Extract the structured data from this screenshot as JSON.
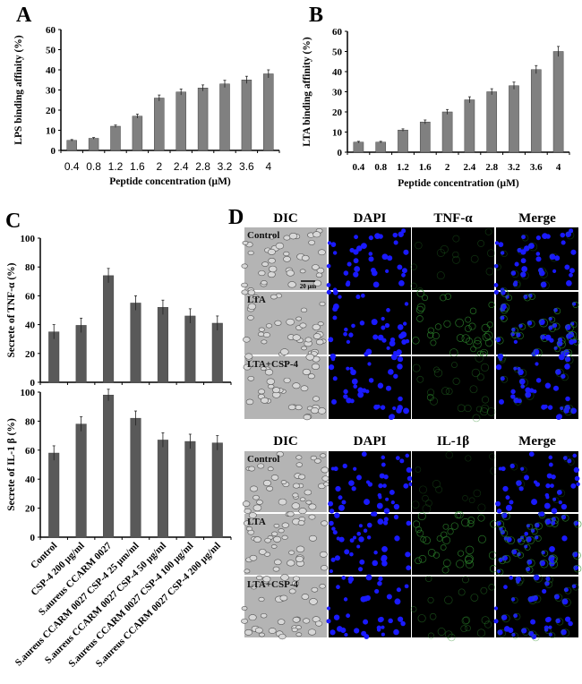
{
  "panels": {
    "a": "A",
    "b": "B",
    "c": "C",
    "d": "D"
  },
  "chart_data": [
    {
      "id": "A",
      "type": "bar",
      "categories": [
        "0.4",
        "0.8",
        "1.2",
        "1.6",
        "2",
        "2.4",
        "2.8",
        "3.2",
        "3.6",
        "4"
      ],
      "values": [
        5,
        6,
        12,
        17,
        26,
        29,
        31,
        33,
        35,
        38
      ],
      "errors": [
        0.4,
        0.4,
        0.6,
        1,
        1.5,
        1.5,
        1.5,
        1.8,
        1.8,
        2
      ],
      "xlabel": "Peptide concentration (μM)",
      "ylabel": "LPS binding affinity (%)",
      "ylim": [
        0,
        60
      ],
      "yticks": [
        0,
        10,
        20,
        30,
        40,
        50,
        60
      ],
      "color": "#808080"
    },
    {
      "id": "B",
      "type": "bar",
      "categories": [
        "0.4",
        "0.8",
        "1.2",
        "1.6",
        "2",
        "2.4",
        "2.8",
        "3.2",
        "3.6",
        "4"
      ],
      "values": [
        5,
        5,
        11,
        15,
        20,
        26,
        30,
        33,
        41,
        50
      ],
      "errors": [
        0.4,
        0.4,
        0.6,
        1,
        1.2,
        1.5,
        1.5,
        1.8,
        2,
        2.5
      ],
      "xlabel": "Peptide concentration (μM)",
      "ylabel": "LTA binding affinity (%)",
      "ylim": [
        0,
        60
      ],
      "yticks": [
        0,
        10,
        20,
        30,
        40,
        50,
        60
      ],
      "color": "#808080"
    },
    {
      "id": "C-top",
      "type": "bar",
      "categories": [
        "Control",
        "CSP-4 200 μg/ml",
        "S.aureus CCARM 0027",
        "S.aureus CCARM 0027 CSP-4 25 μm/ml",
        "S.aureus CCARM 0027 CSP-4 50 μg/ml",
        "S.aureus CCARM 0027 CSP-4 100 μg/ml",
        "S.aureus CCARM 0027 CSP-4 200 μg/ml"
      ],
      "values": [
        35,
        39.5,
        74,
        55,
        52,
        46,
        41
      ],
      "errors": [
        5,
        5,
        5,
        5,
        5,
        5,
        5
      ],
      "ylabel": "Secrete of TNF-α (%)",
      "ylim": [
        0,
        100
      ],
      "yticks": [
        0,
        20,
        40,
        60,
        80,
        100
      ],
      "color": "#595959"
    },
    {
      "id": "C-bottom",
      "type": "bar",
      "categories": [
        "Control",
        "CSP-4 200 μg/ml",
        "S.aureus CCARM 0027",
        "S.aureus CCARM 0027 CSP-4 25 μm/ml",
        "S.aureus CCARM 0027 CSP-4 50 μg/ml",
        "S.aureus CCARM 0027 CSP-4 100 μg/ml",
        "S.aureus CCARM 0027 CSP-4 200 μg/ml"
      ],
      "values": [
        58,
        78,
        98,
        82,
        67,
        66,
        65
      ],
      "errors": [
        5,
        5,
        4,
        5,
        5,
        5,
        5
      ],
      "ylabel": "Secrete of IL-1 β (%)",
      "ylim": [
        0,
        100
      ],
      "yticks": [
        0,
        20,
        40,
        60,
        80,
        100
      ],
      "color": "#595959"
    }
  ],
  "microscopy": {
    "top": {
      "columns": [
        "DIC",
        "DAPI",
        "TNF-α",
        "Merge"
      ],
      "rows": [
        "Control",
        "LTA",
        "LTA+CSP-4"
      ],
      "scale_bar": "20 μm"
    },
    "bottom": {
      "columns": [
        "DIC",
        "DAPI",
        "IL-1β",
        "Merge"
      ],
      "rows": [
        "Control",
        "LTA",
        "LTA+CSP-4"
      ]
    }
  }
}
